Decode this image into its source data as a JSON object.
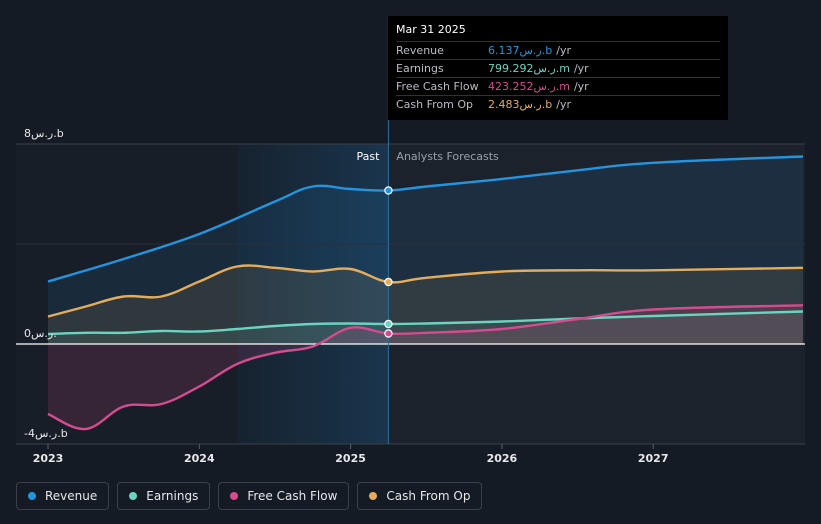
{
  "chart_data": {
    "type": "area",
    "y_unit_label": "ر.س.b",
    "ylim": [
      -4,
      8
    ],
    "y_ticks": [
      {
        "value": 8,
        "label": "8ر.س.b"
      },
      {
        "value": 0,
        "label": "0ر.س."
      },
      {
        "value": -4,
        "label": "-4ر.س.b"
      }
    ],
    "x_ticks": [
      {
        "value": 2023.0,
        "label": "2023"
      },
      {
        "value": 2024.0,
        "label": "2024"
      },
      {
        "value": 2025.0,
        "label": "2025"
      },
      {
        "value": 2026.0,
        "label": "2026"
      },
      {
        "value": 2027.0,
        "label": "2027"
      }
    ],
    "xlim": [
      2022.83,
      2027.99
    ],
    "past_start": 2024.25,
    "divider_x": 2025.25,
    "past_label": "Past",
    "forecast_label": "Analysts Forecasts",
    "series": [
      {
        "name": "Revenue",
        "color": "#2394df",
        "points": [
          [
            2023.0,
            2.5
          ],
          [
            2023.5,
            3.4
          ],
          [
            2024.0,
            4.4
          ],
          [
            2024.5,
            5.7
          ],
          [
            2024.75,
            6.3
          ],
          [
            2025.0,
            6.2
          ],
          [
            2025.25,
            6.14
          ],
          [
            2025.5,
            6.3
          ],
          [
            2026.0,
            6.6
          ],
          [
            2026.5,
            6.95
          ],
          [
            2027.0,
            7.25
          ],
          [
            2027.99,
            7.5
          ]
        ],
        "forecast_from": 2025.25
      },
      {
        "name": "Earnings",
        "color": "#6bd3c0",
        "points": [
          [
            2023.0,
            0.4
          ],
          [
            2023.25,
            0.45
          ],
          [
            2023.5,
            0.45
          ],
          [
            2023.75,
            0.52
          ],
          [
            2024.0,
            0.5
          ],
          [
            2024.25,
            0.6
          ],
          [
            2024.5,
            0.72
          ],
          [
            2024.75,
            0.8
          ],
          [
            2025.0,
            0.82
          ],
          [
            2025.25,
            0.8
          ],
          [
            2025.5,
            0.82
          ],
          [
            2026.0,
            0.9
          ],
          [
            2026.5,
            1.02
          ],
          [
            2027.0,
            1.12
          ],
          [
            2027.99,
            1.3
          ]
        ],
        "forecast_from": 2025.25
      },
      {
        "name": "Free Cash Flow",
        "color": "#d44c8f",
        "points": [
          [
            2023.0,
            -2.8
          ],
          [
            2023.25,
            -3.4
          ],
          [
            2023.5,
            -2.5
          ],
          [
            2023.75,
            -2.4
          ],
          [
            2024.0,
            -1.7
          ],
          [
            2024.25,
            -0.8
          ],
          [
            2024.5,
            -0.35
          ],
          [
            2024.75,
            -0.1
          ],
          [
            2025.0,
            0.65
          ],
          [
            2025.25,
            0.42
          ],
          [
            2025.5,
            0.45
          ],
          [
            2026.0,
            0.6
          ],
          [
            2026.5,
            1.0
          ],
          [
            2027.0,
            1.38
          ],
          [
            2027.99,
            1.55
          ]
        ],
        "forecast_from": 2025.25
      },
      {
        "name": "Cash From Op",
        "color": "#e5ac5c",
        "points": [
          [
            2023.0,
            1.1
          ],
          [
            2023.25,
            1.5
          ],
          [
            2023.5,
            1.9
          ],
          [
            2023.75,
            1.9
          ],
          [
            2024.0,
            2.5
          ],
          [
            2024.25,
            3.1
          ],
          [
            2024.5,
            3.05
          ],
          [
            2024.75,
            2.9
          ],
          [
            2025.0,
            3.0
          ],
          [
            2025.25,
            2.48
          ],
          [
            2025.5,
            2.65
          ],
          [
            2026.0,
            2.9
          ],
          [
            2026.5,
            2.95
          ],
          [
            2027.0,
            2.95
          ],
          [
            2027.99,
            3.05
          ]
        ],
        "forecast_from": 2025.25
      }
    ]
  },
  "tooltip": {
    "date": "Mar 31 2025",
    "rows": [
      {
        "name": "Revenue",
        "value": "6.137ر.س.b",
        "unit": "/yr",
        "color": "#2394df"
      },
      {
        "name": "Earnings",
        "value": "799.292ر.س.m",
        "unit": "/yr",
        "color": "#6bd3c0"
      },
      {
        "name": "Free Cash Flow",
        "value": "423.252ر.س.m",
        "unit": "/yr",
        "color": "#d44c8f"
      },
      {
        "name": "Cash From Op",
        "value": "2.483ر.س.b",
        "unit": "/yr",
        "color": "#e5ac5c"
      }
    ]
  },
  "legend": [
    {
      "name": "Revenue",
      "color": "#2394df"
    },
    {
      "name": "Earnings",
      "color": "#6bd3c0"
    },
    {
      "name": "Free Cash Flow",
      "color": "#d44c8f"
    },
    {
      "name": "Cash From Op",
      "color": "#e5ac5c"
    }
  ]
}
